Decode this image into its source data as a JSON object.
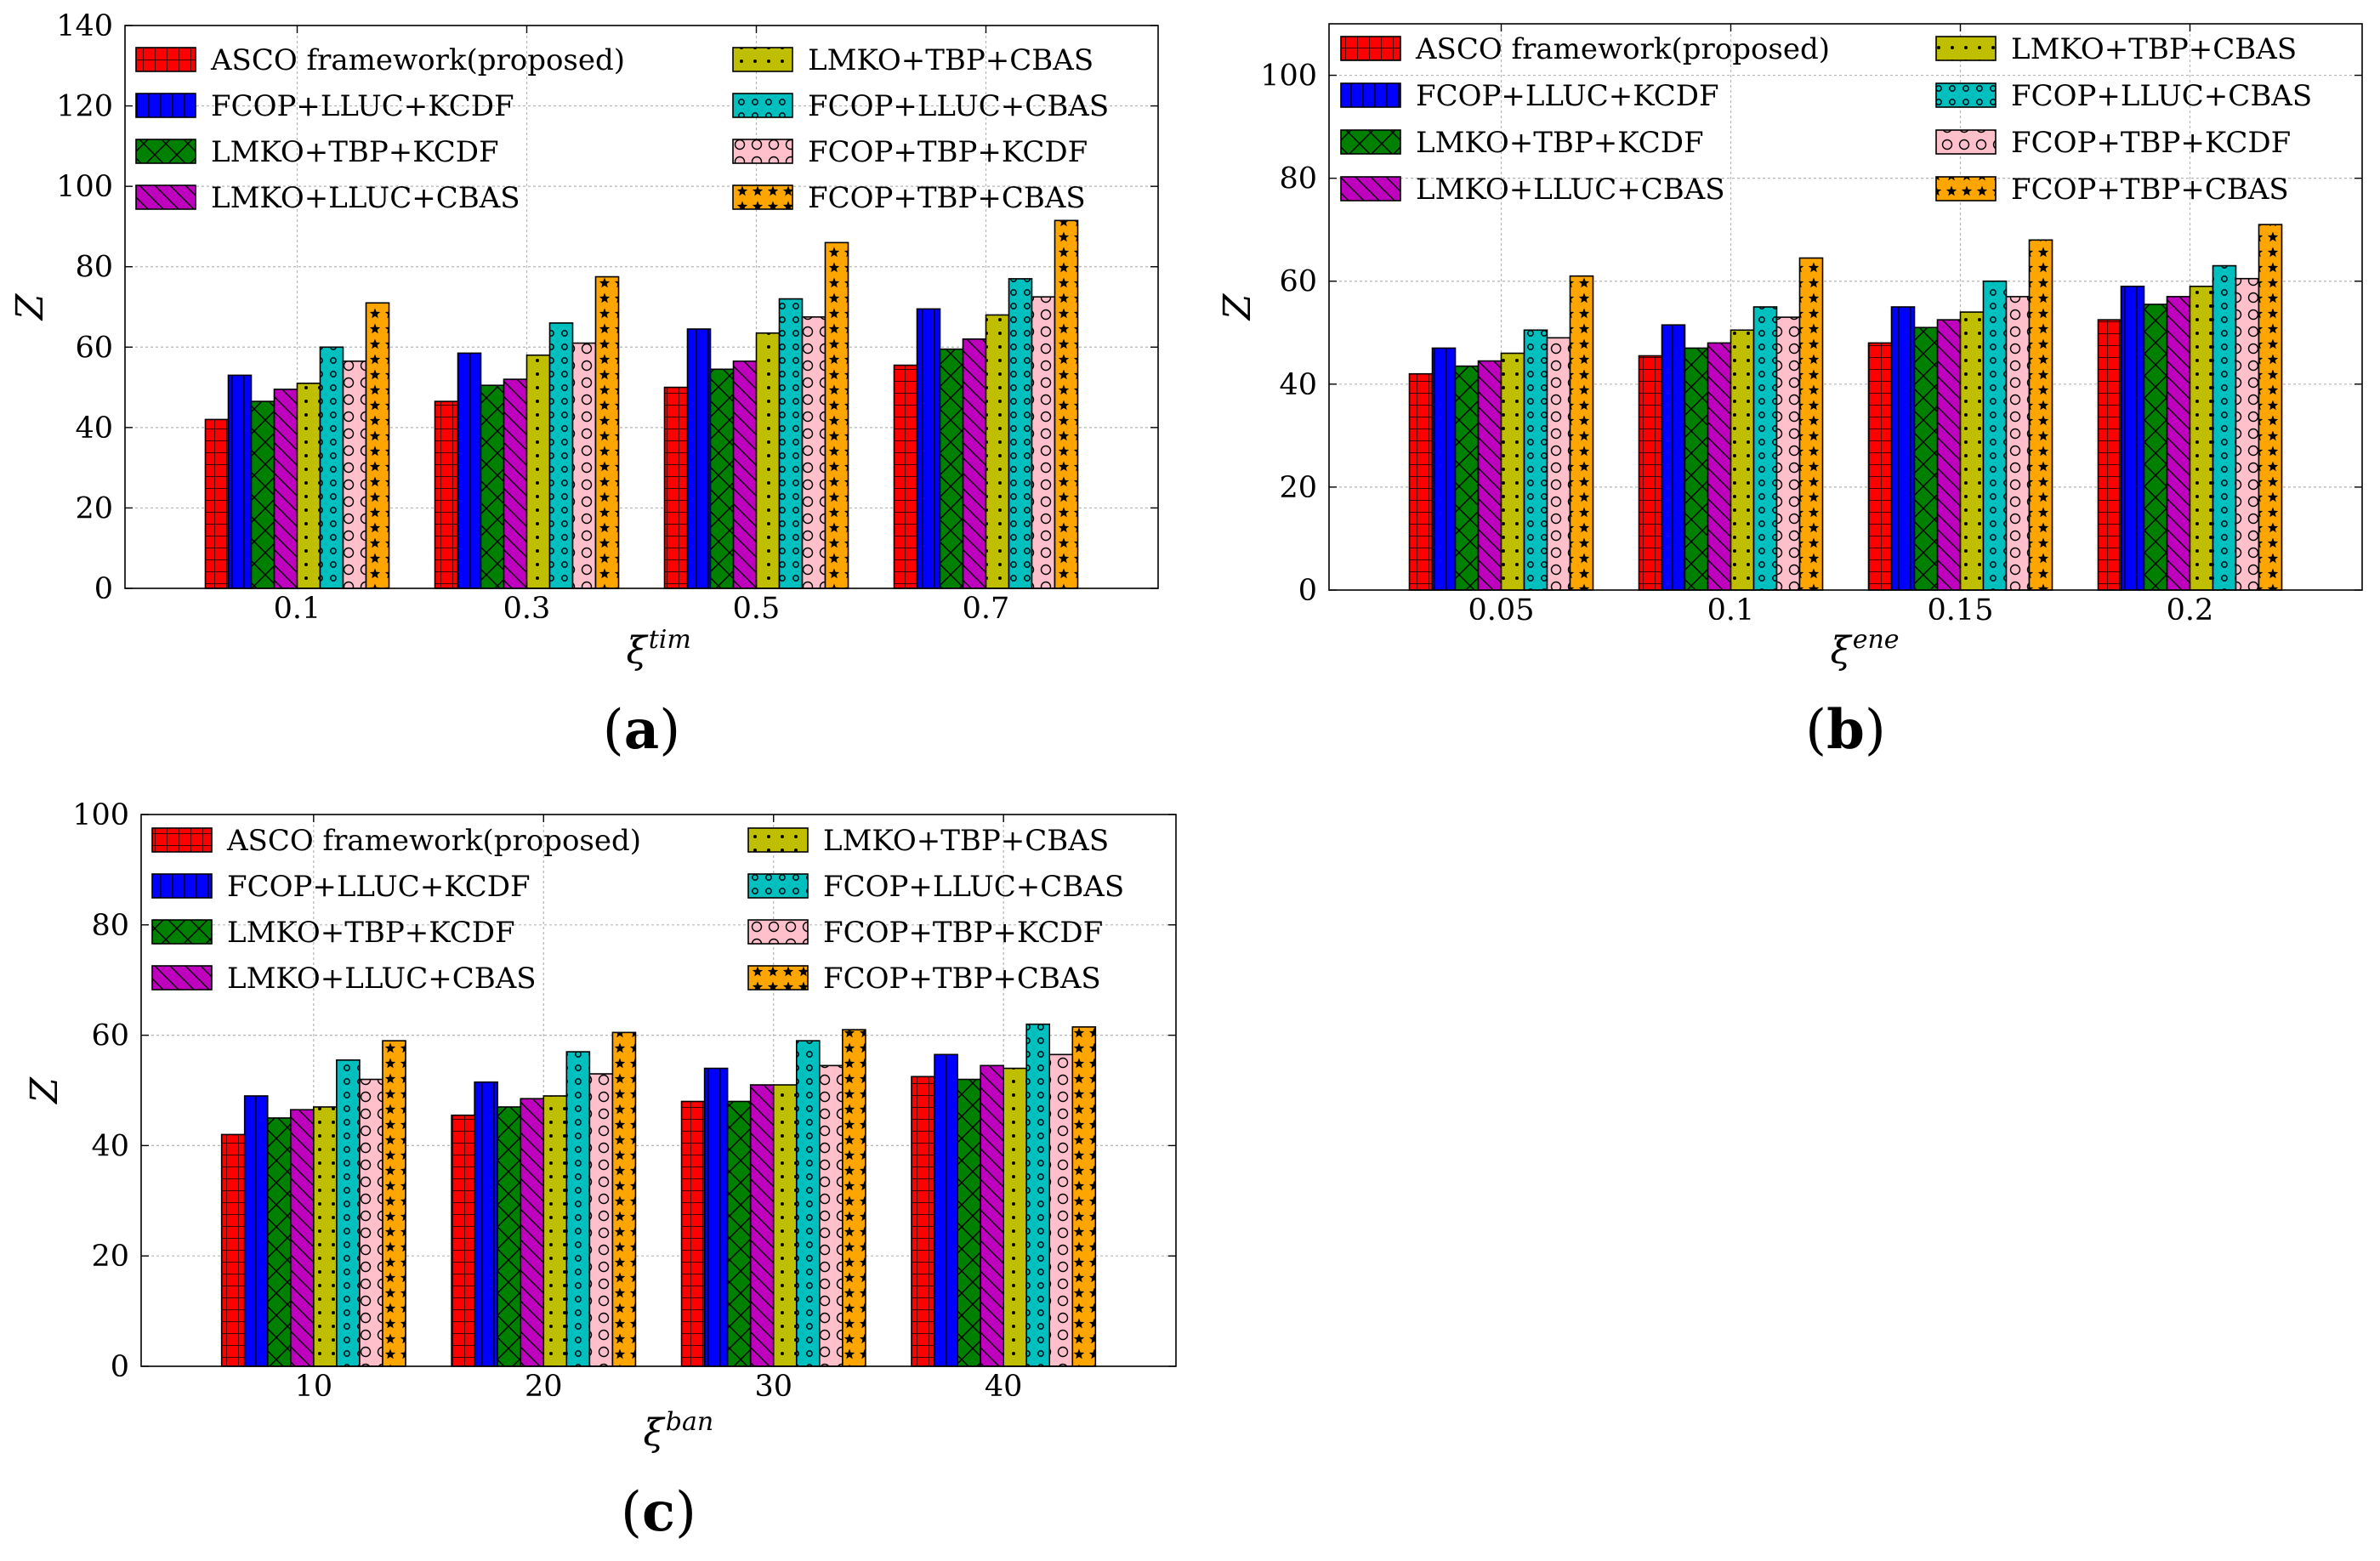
{
  "colors": {
    "ASCO framework(proposed)": "#ff0000",
    "FCOP+LLUC+KCDF": "#0000ff",
    "LMKO+TBP+KCDF": "#008000",
    "LMKO+LLUC+CBAS": "#bf00bf",
    "LMKO+TBP+CBAS": "#bfbf00",
    "FCOP+LLUC+CBAS": "#00bfbf",
    "FCOP+TBP+KCDF": "#ffc0cb",
    "FCOP+TBP+CBAS": "#ffa500"
  },
  "patterns": {
    "ASCO framework(proposed)": "grid",
    "FCOP+LLUC+KCDF": "vertical",
    "LMKO+TBP+KCDF": "cross-diag",
    "LMKO+LLUC+CBAS": "back-diag",
    "LMKO+TBP+CBAS": "dots",
    "FCOP+LLUC+CBAS": "small-circles",
    "FCOP+TBP+KCDF": "circles",
    "FCOP+TBP+CBAS": "stars"
  },
  "chart_data": [
    {
      "id": "a",
      "type": "bar",
      "panel_label": "(a)",
      "ylabel": "Z",
      "xlabel_base": "ξ",
      "xlabel_sup": "tim",
      "ylim": [
        0,
        140
      ],
      "yticks": [
        0,
        20,
        40,
        60,
        80,
        100,
        120,
        140
      ],
      "grid": true,
      "legend_position": "top",
      "categories": [
        "0.1",
        "0.3",
        "0.5",
        "0.7"
      ],
      "series": [
        {
          "name": "ASCO framework(proposed)",
          "values": [
            42,
            46.5,
            50,
            55.5
          ]
        },
        {
          "name": "FCOP+LLUC+KCDF",
          "values": [
            53,
            58.5,
            64.5,
            69.5
          ]
        },
        {
          "name": "LMKO+TBP+KCDF",
          "values": [
            46.5,
            50.5,
            54.5,
            59.5
          ]
        },
        {
          "name": "LMKO+LLUC+CBAS",
          "values": [
            49.5,
            52,
            56.5,
            62
          ]
        },
        {
          "name": "LMKO+TBP+CBAS",
          "values": [
            51,
            58,
            63.5,
            68
          ]
        },
        {
          "name": "FCOP+LLUC+CBAS",
          "values": [
            60,
            66,
            72,
            77
          ]
        },
        {
          "name": "FCOP+TBP+KCDF",
          "values": [
            56.5,
            61,
            67.5,
            72.5
          ]
        },
        {
          "name": "FCOP+TBP+CBAS",
          "values": [
            71,
            77.5,
            86,
            91.5
          ]
        }
      ]
    },
    {
      "id": "b",
      "type": "bar",
      "panel_label": "(b)",
      "ylabel": "Z",
      "xlabel_base": "ξ",
      "xlabel_sup": "ene",
      "ylim": [
        0,
        110
      ],
      "yticks": [
        0,
        20,
        40,
        60,
        80,
        100
      ],
      "grid": true,
      "legend_position": "top",
      "categories": [
        "0.05",
        "0.1",
        "0.15",
        "0.2"
      ],
      "series": [
        {
          "name": "ASCO framework(proposed)",
          "values": [
            42,
            45.5,
            48,
            52.5
          ]
        },
        {
          "name": "FCOP+LLUC+KCDF",
          "values": [
            47,
            51.5,
            55,
            59
          ]
        },
        {
          "name": "LMKO+TBP+KCDF",
          "values": [
            43.5,
            47,
            51,
            55.5
          ]
        },
        {
          "name": "LMKO+LLUC+CBAS",
          "values": [
            44.5,
            48,
            52.5,
            57
          ]
        },
        {
          "name": "LMKO+TBP+CBAS",
          "values": [
            46,
            50.5,
            54,
            59
          ]
        },
        {
          "name": "FCOP+LLUC+CBAS",
          "values": [
            50.5,
            55,
            60,
            63
          ]
        },
        {
          "name": "FCOP+TBP+KCDF",
          "values": [
            49,
            53,
            57,
            60.5
          ]
        },
        {
          "name": "FCOP+TBP+CBAS",
          "values": [
            61,
            64.5,
            68,
            71
          ]
        }
      ]
    },
    {
      "id": "c",
      "type": "bar",
      "panel_label": "(c)",
      "ylabel": "Z",
      "xlabel_base": "ξ",
      "xlabel_sup": "ban",
      "ylim": [
        0,
        100
      ],
      "yticks": [
        0,
        20,
        40,
        60,
        80,
        100
      ],
      "grid": true,
      "legend_position": "top",
      "categories": [
        "10",
        "20",
        "30",
        "40"
      ],
      "series": [
        {
          "name": "ASCO framework(proposed)",
          "values": [
            42,
            45.5,
            48,
            52.5
          ]
        },
        {
          "name": "FCOP+LLUC+KCDF",
          "values": [
            49,
            51.5,
            54,
            56.5
          ]
        },
        {
          "name": "LMKO+TBP+KCDF",
          "values": [
            45,
            47,
            48,
            52
          ]
        },
        {
          "name": "LMKO+LLUC+CBAS",
          "values": [
            46.5,
            48.5,
            51,
            54.5
          ]
        },
        {
          "name": "LMKO+TBP+CBAS",
          "values": [
            47,
            49,
            51,
            54
          ]
        },
        {
          "name": "FCOP+LLUC+CBAS",
          "values": [
            55.5,
            57,
            59,
            62
          ]
        },
        {
          "name": "FCOP+TBP+KCDF",
          "values": [
            52,
            53,
            54.5,
            56.5
          ]
        },
        {
          "name": "FCOP+TBP+CBAS",
          "values": [
            59,
            60.5,
            61,
            61.5
          ]
        }
      ]
    }
  ]
}
